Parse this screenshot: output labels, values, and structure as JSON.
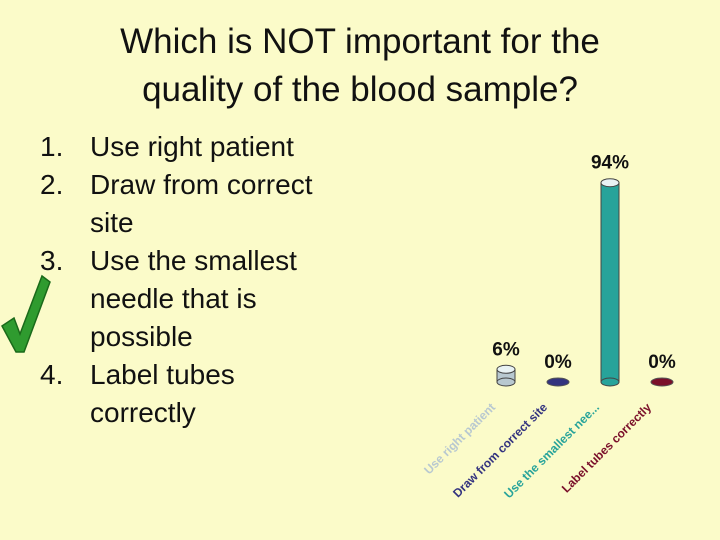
{
  "slide": {
    "title_lines": [
      "Which is NOT important for the",
      "quality of the blood sample?"
    ]
  },
  "options": [
    {
      "num": "1.",
      "lines": [
        "Use right patient"
      ]
    },
    {
      "num": "2.",
      "lines": [
        "Draw from correct",
        "site"
      ]
    },
    {
      "num": "3.",
      "lines": [
        "Use the smallest",
        "needle that is",
        "possible"
      ]
    },
    {
      "num": "4.",
      "lines": [
        "Label tubes",
        "correctly"
      ]
    }
  ],
  "correct_mark": {
    "icon": "checkmark-icon",
    "option_index": 2,
    "color": "#2f9b2f"
  },
  "chart_data": {
    "type": "bar",
    "categories": [
      "Use right patient",
      "Draw from correct site",
      "Use the smallest nee...",
      "Label tubes correctly"
    ],
    "values": [
      6,
      0,
      94,
      0
    ],
    "labels": [
      "6%",
      "0%",
      "94%",
      "0%"
    ],
    "ylim": [
      0,
      100
    ],
    "colors": [
      "#b8c8d0",
      "#33337f",
      "#27a39a",
      "#7a0f2a"
    ],
    "grid": false
  }
}
